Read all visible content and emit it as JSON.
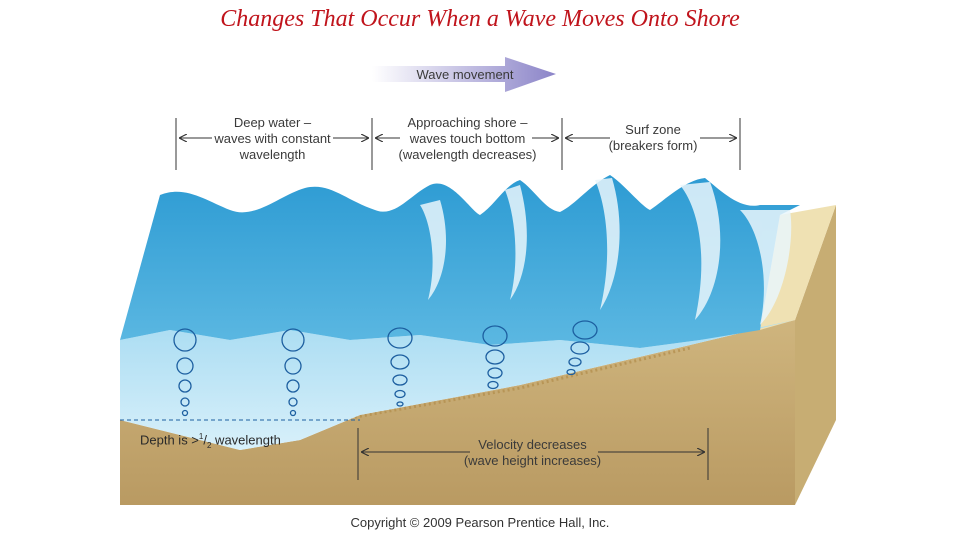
{
  "title": "Changes That Occur When a Wave Moves Onto Shore",
  "arrow_label": "Wave movement",
  "zones": [
    {
      "lines": [
        "Deep water –",
        "waves with constant",
        "wavelength"
      ]
    },
    {
      "lines": [
        "Approaching shore –",
        "waves touch bottom",
        "(wavelength decreases)"
      ]
    },
    {
      "lines": [
        "Surf zone",
        "(breakers form)"
      ]
    }
  ],
  "depth_label": {
    "prefix": "Depth is >",
    "num": "1",
    "den": "2",
    "suffix": " wavelength"
  },
  "velocity_label": [
    "Velocity decreases",
    "(wave height increases)"
  ],
  "copyright": "Copyright © 2009 Pearson Prentice Hall, Inc.",
  "colors": {
    "title": "#c0141c",
    "water_deep": "#3aa6d8",
    "water_light": "#bfe6f5",
    "sand": "#d9c08c",
    "sand_dark": "#b89a60",
    "arrow": "#9a93d0"
  }
}
